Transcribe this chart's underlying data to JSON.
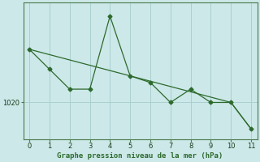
{
  "xlabel": "Graphe pression niveau de la mer (hPa)",
  "x": [
    0,
    1,
    2,
    3,
    4,
    5,
    6,
    7,
    8,
    9,
    10,
    11
  ],
  "line_zigzag": [
    1028,
    1025,
    1022,
    1022,
    1033,
    1024,
    1023,
    1020,
    1022,
    1020,
    1020,
    1016
  ],
  "line_diagonal": [
    1028,
    1027.2,
    1026.4,
    1025.6,
    1024.8,
    1024.0,
    1023.2,
    1022.4,
    1021.6,
    1020.8,
    1020.0,
    1016
  ],
  "ylim": [
    1014.5,
    1035
  ],
  "xlim": [
    -0.3,
    11.3
  ],
  "xticks": [
    0,
    1,
    2,
    3,
    4,
    5,
    6,
    7,
    8,
    9,
    10,
    11
  ],
  "ytick_val": 1020,
  "ytick_pos": 1020,
  "line_color": "#2d6a2d",
  "bg_color": "#cce8e8",
  "grid_color": "#aad0d0",
  "spine_color": "#4a7a4a"
}
